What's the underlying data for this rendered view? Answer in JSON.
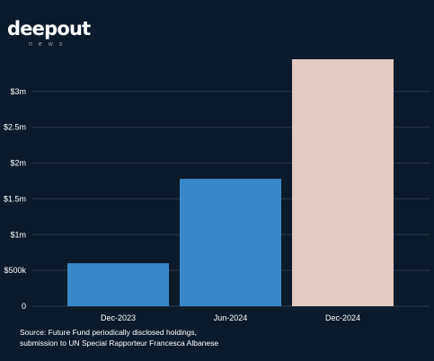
{
  "brand": {
    "name": "deepout",
    "sub": "news"
  },
  "chart_data": {
    "type": "bar",
    "title": "",
    "xlabel": "",
    "ylabel": "",
    "categories": [
      "Dec-2023",
      "Jun-2024",
      "Dec-2024"
    ],
    "values": [
      600000,
      1780000,
      3450000
    ],
    "ylim": [
      0,
      3500000
    ],
    "yticks": [
      0,
      500000,
      1000000,
      1500000,
      2000000,
      2500000,
      3000000
    ],
    "ytick_labels": [
      "0",
      "$500k",
      "$1m",
      "$1.5m",
      "$2m",
      "$2.5m",
      "$3m"
    ],
    "bar_colors": [
      "#3a87c8",
      "#3a87c8",
      "#e1cbc2"
    ],
    "grid": true,
    "grid_color": "#2b3b4d",
    "background": "#0c1b2b",
    "legend": "none"
  },
  "source_lines": [
    "Source: Future Fund periodically disclosed holdings,",
    "submission to UN Special Rapporteur Francesca Albanese"
  ]
}
